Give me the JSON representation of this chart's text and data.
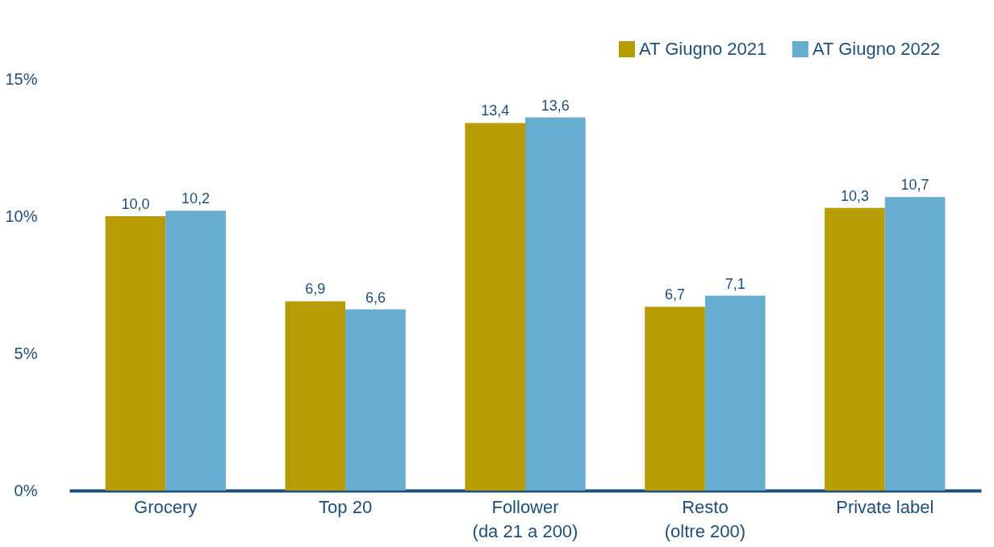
{
  "chart_data": {
    "type": "bar",
    "categories": [
      "Grocery",
      "Top 20",
      "Follower\n(da 21 a 200)",
      "Resto\n(oltre 200)",
      "Private label"
    ],
    "series": [
      {
        "name": "AT Giugno 2021",
        "color": "#b89c05",
        "values": [
          10.0,
          6.9,
          13.4,
          6.7,
          10.3
        ],
        "value_labels": [
          "10,0",
          "6,9",
          "13,4",
          "6,7",
          "10,3"
        ]
      },
      {
        "name": "AT Giugno 2022",
        "color": "#67adcf",
        "values": [
          10.2,
          6.6,
          13.6,
          7.1,
          10.7
        ],
        "value_labels": [
          "10,2",
          "6,6",
          "13,6",
          "7,1",
          "10,7"
        ]
      }
    ],
    "ylim": [
      0,
      15
    ],
    "yticks": [
      {
        "value": 0,
        "label": "0%"
      },
      {
        "value": 5,
        "label": "5%"
      },
      {
        "value": 10,
        "label": "10%"
      },
      {
        "value": 15,
        "label": "15%"
      }
    ],
    "grid": false,
    "legend": "top right"
  }
}
